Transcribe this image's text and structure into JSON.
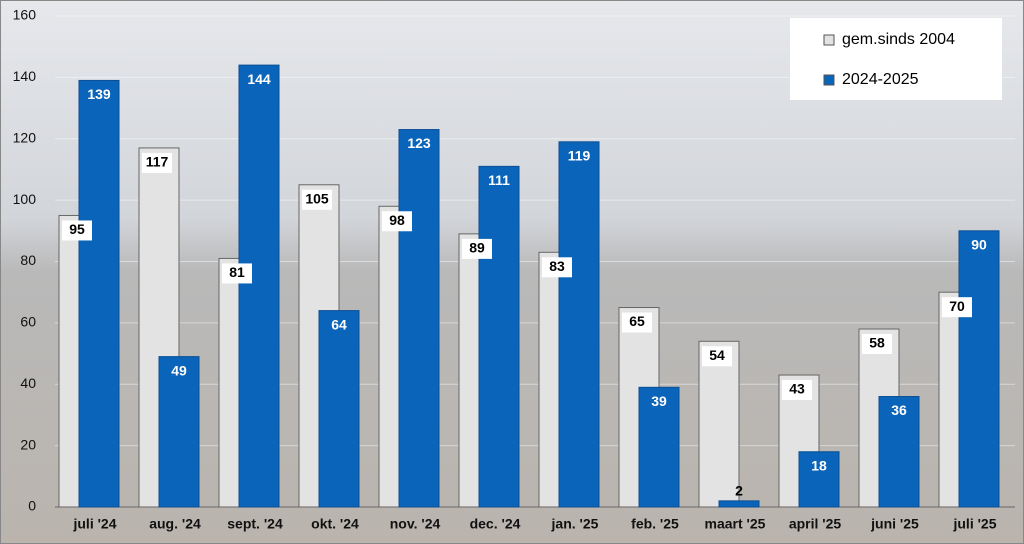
{
  "chart_data": {
    "type": "bar",
    "categories": [
      "juli '24",
      "aug. '24",
      "sept. '24",
      "okt. '24",
      "nov. '24",
      "dec. '24",
      "jan. '25",
      "feb. '25",
      "maart '25",
      "april '25",
      "juni '25",
      "juli '25"
    ],
    "series": [
      {
        "name": "gem.sinds 2004",
        "color": "#e3e3e3",
        "values": [
          95,
          117,
          81,
          105,
          98,
          89,
          83,
          65,
          54,
          43,
          58,
          70
        ]
      },
      {
        "name": "2024-2025",
        "color": "#0a64b9",
        "values": [
          139,
          49,
          144,
          64,
          123,
          111,
          119,
          39,
          2,
          18,
          36,
          90
        ]
      }
    ],
    "ylim": [
      0,
      160
    ],
    "yticks": [
      0,
      20,
      40,
      60,
      80,
      100,
      120,
      140,
      160
    ],
    "grid": true,
    "legend": "top-right"
  }
}
